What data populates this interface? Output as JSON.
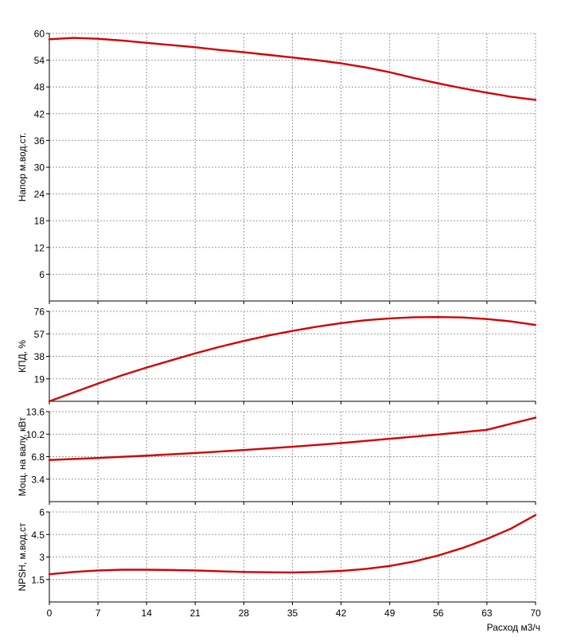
{
  "chart_data": [
    {
      "type": "line",
      "ylabel": "Напор м.вод.ст.",
      "xlim": [
        0,
        70
      ],
      "ylim": [
        0,
        60
      ],
      "yticks": [
        6,
        12,
        18,
        24,
        30,
        36,
        42,
        48,
        54,
        60
      ],
      "grid": true,
      "series": [
        {
          "x": [
            0,
            3.5,
            7,
            10.5,
            14,
            17.5,
            21,
            24.5,
            28,
            31.5,
            35,
            38.5,
            42,
            45.5,
            49,
            52.5,
            56,
            59.5,
            63,
            66.5,
            70
          ],
          "values": [
            58.7,
            59.0,
            58.8,
            58.4,
            57.9,
            57.4,
            56.9,
            56.3,
            55.8,
            55.2,
            54.6,
            54.0,
            53.3,
            52.4,
            51.3,
            50.0,
            48.8,
            47.7,
            46.7,
            45.8,
            45.1
          ]
        }
      ]
    },
    {
      "type": "line",
      "ylabel": "КПД, %",
      "xlim": [
        0,
        70
      ],
      "ylim": [
        0,
        76
      ],
      "yticks": [
        19,
        38,
        57,
        76
      ],
      "grid": true,
      "series": [
        {
          "x": [
            0,
            3.5,
            7,
            10.5,
            14,
            17.5,
            21,
            24.5,
            28,
            31.5,
            35,
            38.5,
            42,
            45.5,
            49,
            52.5,
            56,
            59.5,
            63,
            66.5,
            70
          ],
          "values": [
            0,
            7.5,
            15,
            22,
            28.5,
            34.5,
            40.5,
            46,
            51,
            55.5,
            59.5,
            63,
            66,
            68.5,
            70,
            71,
            71.2,
            70.8,
            69.5,
            67.5,
            64.5
          ]
        }
      ]
    },
    {
      "type": "line",
      "ylabel": "Мощ. на валу, кВт",
      "xlim": [
        0,
        70
      ],
      "ylim": [
        0,
        13.6
      ],
      "yticks": [
        3.4,
        6.8,
        10.2,
        13.6
      ],
      "grid": true,
      "series": [
        {
          "x": [
            0,
            7,
            14,
            21,
            28,
            35,
            42,
            49,
            56,
            63,
            70
          ],
          "values": [
            6.3,
            6.6,
            6.95,
            7.35,
            7.8,
            8.3,
            8.85,
            9.5,
            10.15,
            10.85,
            12.7
          ]
        }
      ]
    },
    {
      "type": "line",
      "ylabel": "NPSH, м.вод.ст",
      "xlabel": "Расход м3/ч",
      "xlim": [
        0,
        70
      ],
      "ylim": [
        0,
        6
      ],
      "yticks": [
        1.5,
        3,
        4.5,
        6
      ],
      "xticks": [
        0,
        7,
        14,
        21,
        28,
        35,
        42,
        49,
        56,
        63,
        70
      ],
      "grid": true,
      "series": [
        {
          "x": [
            0,
            3.5,
            7,
            10.5,
            14,
            17.5,
            21,
            24.5,
            28,
            31.5,
            35,
            38.5,
            42,
            45.5,
            49,
            52.5,
            56,
            59.5,
            63,
            66.5,
            70
          ],
          "values": [
            1.85,
            2.0,
            2.1,
            2.15,
            2.15,
            2.13,
            2.1,
            2.05,
            2.0,
            1.98,
            1.97,
            2.0,
            2.07,
            2.2,
            2.4,
            2.7,
            3.1,
            3.6,
            4.2,
            4.9,
            5.8
          ]
        }
      ]
    }
  ],
  "style": {
    "line_color": "#d40000",
    "grid_color": "#9a9a9a",
    "axis_color": "#000000"
  }
}
